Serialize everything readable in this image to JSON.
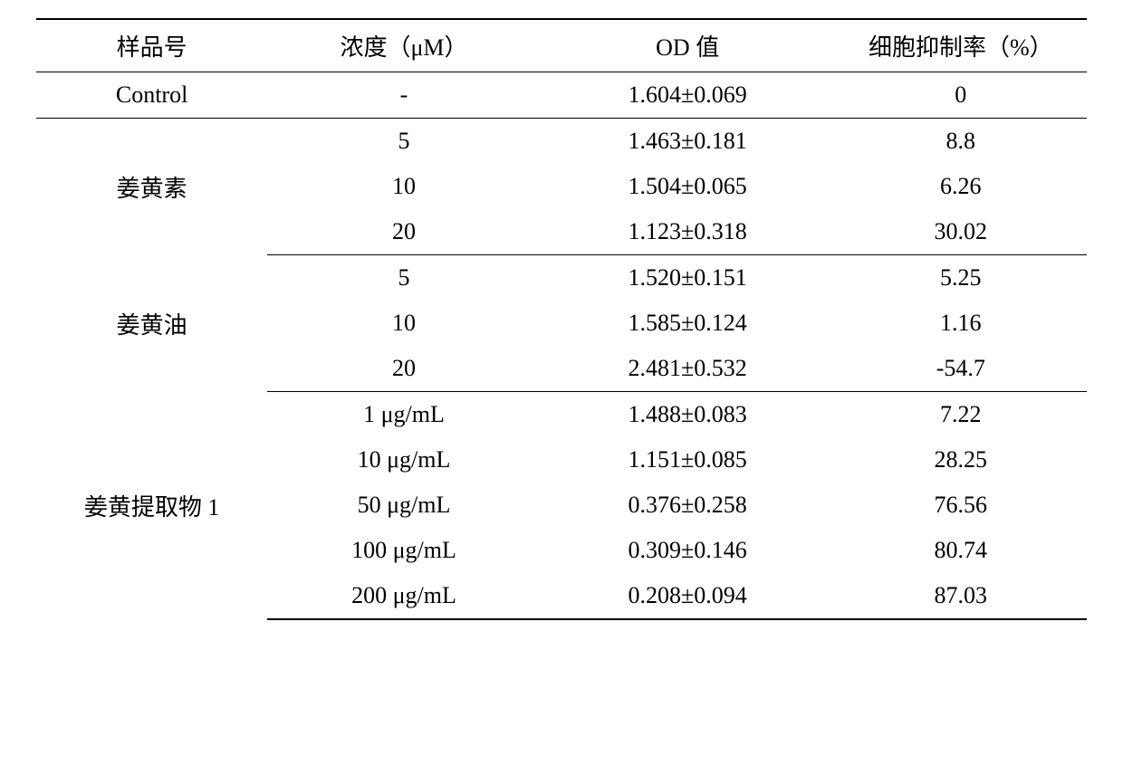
{
  "table": {
    "headers": {
      "sample": "样品号",
      "concentration": "浓度（μM）",
      "od": "OD 值",
      "inhibition": "细胞抑制率（%）"
    },
    "groups": [
      {
        "sample": "Control",
        "rows": [
          {
            "concentration": "-",
            "od": "1.604±0.069",
            "inhibition": "0"
          }
        ]
      },
      {
        "sample": "姜黄素",
        "rows": [
          {
            "concentration": "5",
            "od": "1.463±0.181",
            "inhibition": "8.8"
          },
          {
            "concentration": "10",
            "od": "1.504±0.065",
            "inhibition": "6.26"
          },
          {
            "concentration": "20",
            "od": "1.123±0.318",
            "inhibition": "30.02"
          }
        ]
      },
      {
        "sample": "姜黄油",
        "rows": [
          {
            "concentration": "5",
            "od": "1.520±0.151",
            "inhibition": "5.25"
          },
          {
            "concentration": "10",
            "od": "1.585±0.124",
            "inhibition": "1.16"
          },
          {
            "concentration": "20",
            "od": "2.481±0.532",
            "inhibition": "-54.7"
          }
        ]
      },
      {
        "sample": "姜黄提取物 1",
        "rows": [
          {
            "concentration": "1 μg/mL",
            "od": "1.488±0.083",
            "inhibition": "7.22"
          },
          {
            "concentration": "10 μg/mL",
            "od": "1.151±0.085",
            "inhibition": "28.25"
          },
          {
            "concentration": "50 μg/mL",
            "od": "0.376±0.258",
            "inhibition": "76.56"
          },
          {
            "concentration": "100 μg/mL",
            "od": "0.309±0.146",
            "inhibition": "80.74"
          },
          {
            "concentration": "200 μg/mL",
            "od": "0.208±0.094",
            "inhibition": "87.03"
          }
        ]
      }
    ]
  }
}
